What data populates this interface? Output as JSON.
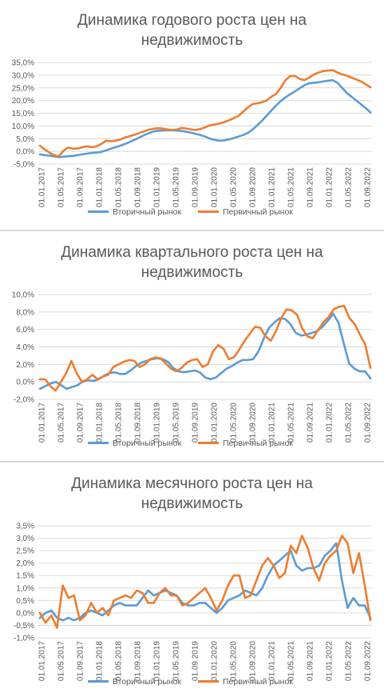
{
  "chart_data": [
    {
      "type": "line",
      "title_lines": [
        "Динамика годового роста цен на",
        "недвижимость"
      ],
      "ylim": [
        -5,
        35
      ],
      "y_step": 5,
      "y_ticks": [
        "-5,0%",
        "0,0%",
        "5,0%",
        "10,0%",
        "15,0%",
        "20,0%",
        "25,0%",
        "30,0%",
        "35,0%"
      ],
      "x_labels": [
        "01.01.2017",
        "01.05.2017",
        "01.09.2017",
        "01.01.2018",
        "01.05.2018",
        "01.09.2018",
        "01.01.2019",
        "01.05.2019",
        "01.09.2019",
        "01.01.2020",
        "01.05.2020",
        "01.09.2020",
        "01.01.2021",
        "01.05.2021",
        "01.09.2021",
        "01.01.2022",
        "01.05.2022",
        "01.09.2022"
      ],
      "grid": true,
      "legend_position": "bottom",
      "series": [
        {
          "name": "Вторичный рынок",
          "color": "#5b9bd5",
          "values": [
            -1.2,
            -1.5,
            -1.7,
            -2.0,
            -2.3,
            -2.1,
            -1.9,
            -1.8,
            -1.5,
            -1.2,
            -0.9,
            -0.6,
            -0.5,
            -0.2,
            0.4,
            1.0,
            1.6,
            2.2,
            2.9,
            3.7,
            4.5,
            5.4,
            6.3,
            7.1,
            7.8,
            8.1,
            8.2,
            8.3,
            8.3,
            8.2,
            8.0,
            7.7,
            7.3,
            6.9,
            6.4,
            5.8,
            5.0,
            4.5,
            4.2,
            4.3,
            4.7,
            5.2,
            5.8,
            6.4,
            7.2,
            8.5,
            10.2,
            12.0,
            14.0,
            16.0,
            18.0,
            19.8,
            21.2,
            22.5,
            23.6,
            24.8,
            26.0,
            26.8,
            27.0,
            27.2,
            27.5,
            27.8,
            28.0,
            27.0,
            25.0,
            23.0,
            21.5,
            20.0,
            18.5,
            17.0,
            15.3
          ]
        },
        {
          "name": "Первичный рынок",
          "color": "#ed7d31",
          "values": [
            2.2,
            0.8,
            -0.5,
            -1.5,
            -2.0,
            0.3,
            1.5,
            1.0,
            1.1,
            1.6,
            2.0,
            1.6,
            2.0,
            2.9,
            4.2,
            4.0,
            4.2,
            4.6,
            5.5,
            6.0,
            6.5,
            7.2,
            7.8,
            8.5,
            8.9,
            9.1,
            9.0,
            8.6,
            8.4,
            8.6,
            9.2,
            9.0,
            8.6,
            8.4,
            8.8,
            9.5,
            10.2,
            10.6,
            10.9,
            11.5,
            12.2,
            13.0,
            13.9,
            15.5,
            17.2,
            18.6,
            18.9,
            19.3,
            20.0,
            21.5,
            22.6,
            25.0,
            28.0,
            29.6,
            29.7,
            28.5,
            28.0,
            29.0,
            30.2,
            31.0,
            31.6,
            31.8,
            32.0,
            31.0,
            30.3,
            29.8,
            29.0,
            28.3,
            27.5,
            26.4,
            25.2
          ]
        }
      ],
      "legend_labels": [
        "Вторичный рынок",
        "Первичный рынок"
      ]
    },
    {
      "type": "line",
      "title_lines": [
        "Динамика квартального роста цен на",
        "недвижимость"
      ],
      "ylim": [
        -2,
        10
      ],
      "y_step": 2,
      "y_ticks": [
        "-2,0%",
        "0,0%",
        "2,0%",
        "4,0%",
        "6,0%",
        "8,0%",
        "10,0%"
      ],
      "x_labels": [
        "01.01.2017",
        "01.05.2017",
        "01.09.2017",
        "01.01.2018",
        "01.05.2018",
        "01.09.2018",
        "01.01.2019",
        "01.05.2019",
        "01.09.2019",
        "01.01.2020",
        "01.05.2020",
        "01.09.2020",
        "01.01.2021",
        "01.05.2021",
        "01.09.2021",
        "01.01.2022",
        "01.05.2022",
        "01.09.2022"
      ],
      "grid": true,
      "legend_position": "bottom",
      "series": [
        {
          "name": "Вторичный рынок",
          "color": "#5b9bd5",
          "values": [
            -0.8,
            -0.5,
            -0.2,
            0.0,
            -0.4,
            -0.8,
            -0.6,
            -0.4,
            0.0,
            0.2,
            0.1,
            0.3,
            0.7,
            1.0,
            1.1,
            0.9,
            0.9,
            1.3,
            1.8,
            2.2,
            2.4,
            2.6,
            2.7,
            2.6,
            2.3,
            1.6,
            1.2,
            1.1,
            1.2,
            1.3,
            1.1,
            0.5,
            0.3,
            0.5,
            1.0,
            1.5,
            1.8,
            2.2,
            2.5,
            2.5,
            2.6,
            3.5,
            5.0,
            6.2,
            6.8,
            7.3,
            7.2,
            6.6,
            5.6,
            5.3,
            5.4,
            5.6,
            5.8,
            6.3,
            7.0,
            7.8,
            6.8,
            4.4,
            2.1,
            1.5,
            1.2,
            1.2,
            0.4
          ]
        },
        {
          "name": "Первичный рынок",
          "color": "#ed7d31",
          "values": [
            0.3,
            0.3,
            -0.5,
            -1.0,
            0.0,
            1.0,
            2.4,
            1.0,
            0.0,
            0.3,
            0.8,
            0.3,
            0.6,
            0.8,
            1.7,
            2.0,
            2.3,
            2.5,
            2.4,
            1.7,
            2.0,
            2.6,
            2.8,
            2.7,
            2.1,
            1.5,
            1.2,
            1.6,
            2.2,
            2.5,
            2.6,
            1.7,
            2.0,
            3.5,
            4.2,
            3.8,
            2.6,
            2.8,
            3.7,
            4.7,
            5.5,
            6.3,
            6.2,
            5.2,
            4.7,
            5.8,
            7.3,
            8.3,
            8.2,
            7.7,
            6.1,
            5.2,
            5.0,
            5.9,
            6.8,
            7.4,
            8.3,
            8.6,
            8.7,
            7.3,
            6.6,
            5.4,
            4.3,
            1.6
          ]
        }
      ],
      "legend_labels": [
        "Вторичный рынок",
        "Первичный рынок"
      ]
    },
    {
      "type": "line",
      "title_lines": [
        "Динамика месячного роста цен на",
        "недвижимость"
      ],
      "ylim": [
        -1,
        3.5
      ],
      "y_step": 0.5,
      "y_ticks": [
        "-1,0%",
        "-0,5%",
        "0,0%",
        "0,5%",
        "1,0%",
        "1,5%",
        "2,0%",
        "2,5%",
        "3,0%",
        "3,5%"
      ],
      "x_labels": [
        "01.01.2017",
        "01.05.2017",
        "01.09.2017",
        "01.01.2018",
        "01.05.2018",
        "01.09.2018",
        "01.01.2019",
        "01.05.2019",
        "01.09.2019",
        "01.01.2020",
        "01.05.2020",
        "01.09.2020",
        "01.01.2021",
        "01.05.2021",
        "01.09.2021",
        "01.01.2022",
        "01.05.2022",
        "01.09.2022"
      ],
      "grid": true,
      "legend_position": "bottom",
      "series": [
        {
          "name": "Вторичный рынок",
          "color": "#5b9bd5",
          "values": [
            -0.2,
            0.0,
            0.1,
            -0.2,
            -0.3,
            -0.2,
            -0.3,
            -0.2,
            0.0,
            0.1,
            0.0,
            -0.1,
            0.1,
            0.3,
            0.4,
            0.3,
            0.3,
            0.3,
            0.6,
            0.9,
            0.7,
            0.8,
            0.9,
            0.8,
            0.7,
            0.4,
            0.3,
            0.3,
            0.4,
            0.4,
            0.2,
            0.0,
            0.2,
            0.5,
            0.6,
            0.7,
            0.9,
            0.8,
            0.7,
            1.0,
            1.5,
            1.9,
            2.1,
            2.3,
            2.5,
            1.9,
            1.7,
            1.8,
            1.8,
            1.9,
            2.3,
            2.5,
            2.8,
            1.3,
            0.2,
            0.6,
            0.3,
            0.3,
            -0.2
          ]
        },
        {
          "name": "Первичный рынок",
          "color": "#ed7d31",
          "values": [
            0.0,
            -0.4,
            -0.1,
            -0.6,
            1.1,
            0.6,
            0.7,
            -0.3,
            -0.1,
            0.4,
            0.0,
            0.2,
            -0.1,
            0.5,
            0.6,
            0.7,
            0.6,
            0.9,
            0.8,
            0.4,
            0.4,
            0.8,
            1.0,
            0.7,
            0.7,
            0.3,
            0.4,
            0.6,
            0.8,
            1.0,
            0.6,
            0.1,
            0.5,
            1.1,
            1.5,
            1.5,
            0.6,
            0.7,
            1.3,
            1.9,
            2.2,
            1.9,
            1.4,
            1.6,
            2.7,
            2.4,
            3.1,
            2.6,
            1.8,
            1.3,
            2.0,
            2.3,
            2.5,
            3.1,
            2.8,
            1.6,
            2.4,
            1.1,
            -0.3
          ]
        }
      ],
      "legend_labels": [
        "Вторичный рынок",
        "Первичный рынок"
      ]
    }
  ]
}
